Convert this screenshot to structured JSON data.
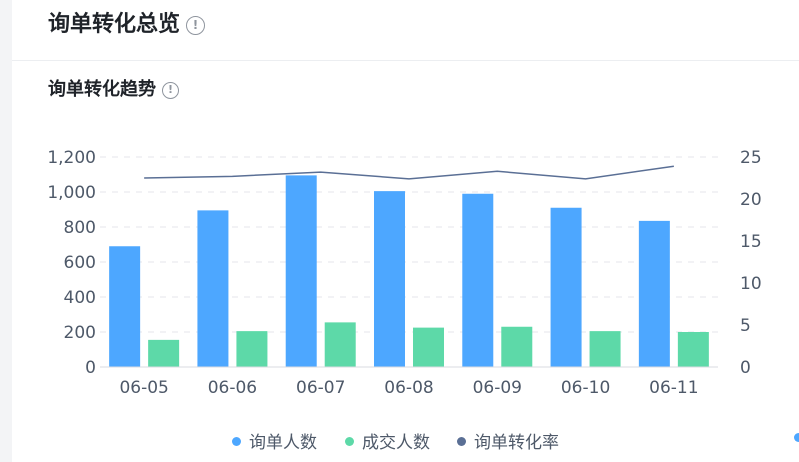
{
  "page": {
    "title": "询单转化总览",
    "info_icon": "info-icon",
    "subtitle": "询单转化趋势"
  },
  "colors": {
    "inquiry_bar": "#4da7ff",
    "deal_bar": "#5dd9a8",
    "rate_line": "#5a6f95",
    "grid": "#e5e6eb",
    "tick_text": "#4e5969"
  },
  "chart_data": {
    "type": "bar",
    "categories": [
      "06-05",
      "06-06",
      "06-07",
      "06-08",
      "06-09",
      "06-10",
      "06-11"
    ],
    "series": [
      {
        "name": "询单人数",
        "type": "bar",
        "axis": "left",
        "values": [
          690,
          895,
          1095,
          1005,
          990,
          910,
          835
        ]
      },
      {
        "name": "成交人数",
        "type": "bar",
        "axis": "left",
        "values": [
          155,
          205,
          255,
          225,
          230,
          205,
          200
        ]
      },
      {
        "name": "询单转化率",
        "type": "line",
        "axis": "right",
        "values": [
          22.5,
          22.7,
          23.2,
          22.4,
          23.3,
          22.4,
          23.9
        ]
      }
    ],
    "y_left": {
      "min": 0,
      "max": 1200,
      "ticks": [
        "0",
        "200",
        "400",
        "600",
        "800",
        "1,000",
        "1,200"
      ]
    },
    "y_right": {
      "min": 0,
      "max": 25,
      "ticks": [
        "0",
        "5",
        "10",
        "15",
        "20",
        "25"
      ]
    },
    "grid": true,
    "legend_position": "bottom"
  }
}
